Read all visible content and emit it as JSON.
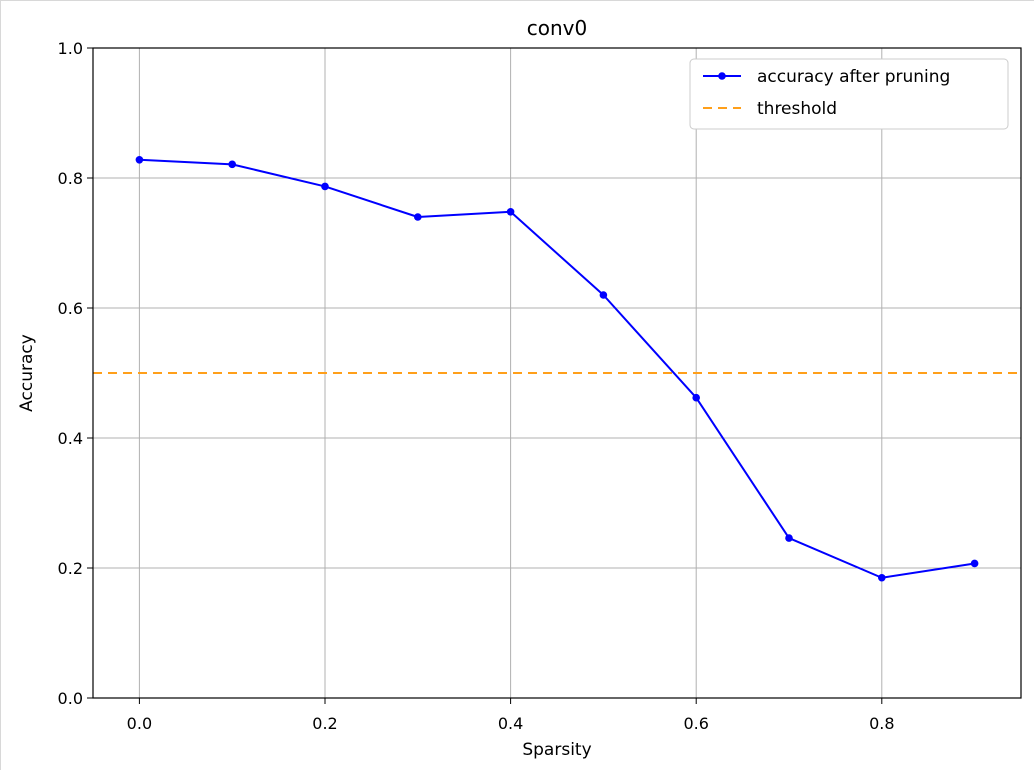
{
  "chart_data": {
    "type": "line",
    "title": "conv0",
    "xlabel": "Sparsity",
    "ylabel": "Accuracy",
    "xlim": [
      -0.05,
      0.95
    ],
    "ylim": [
      0.0,
      1.0
    ],
    "grid": true,
    "legend_position": "top-right",
    "x_ticks": [
      0.0,
      0.2,
      0.4,
      0.6,
      0.8
    ],
    "x_tick_labels": [
      "0.0",
      "0.2",
      "0.4",
      "0.6",
      "0.8"
    ],
    "y_ticks": [
      0.0,
      0.2,
      0.4,
      0.6,
      0.8,
      1.0
    ],
    "y_tick_labels": [
      "0.0",
      "0.2",
      "0.4",
      "0.6",
      "0.8",
      "1.0"
    ],
    "series": [
      {
        "name": "accuracy after pruning",
        "color": "#0000ff",
        "style": "solid",
        "marker": "circle",
        "x": [
          0.0,
          0.1,
          0.2,
          0.3,
          0.4,
          0.5,
          0.6,
          0.7,
          0.8,
          0.9
        ],
        "y": [
          0.828,
          0.821,
          0.787,
          0.74,
          0.748,
          0.62,
          0.462,
          0.246,
          0.185,
          0.207
        ]
      }
    ],
    "threshold": {
      "name": "threshold",
      "value": 0.5,
      "color": "#ff9f1a",
      "style": "dashed"
    }
  }
}
